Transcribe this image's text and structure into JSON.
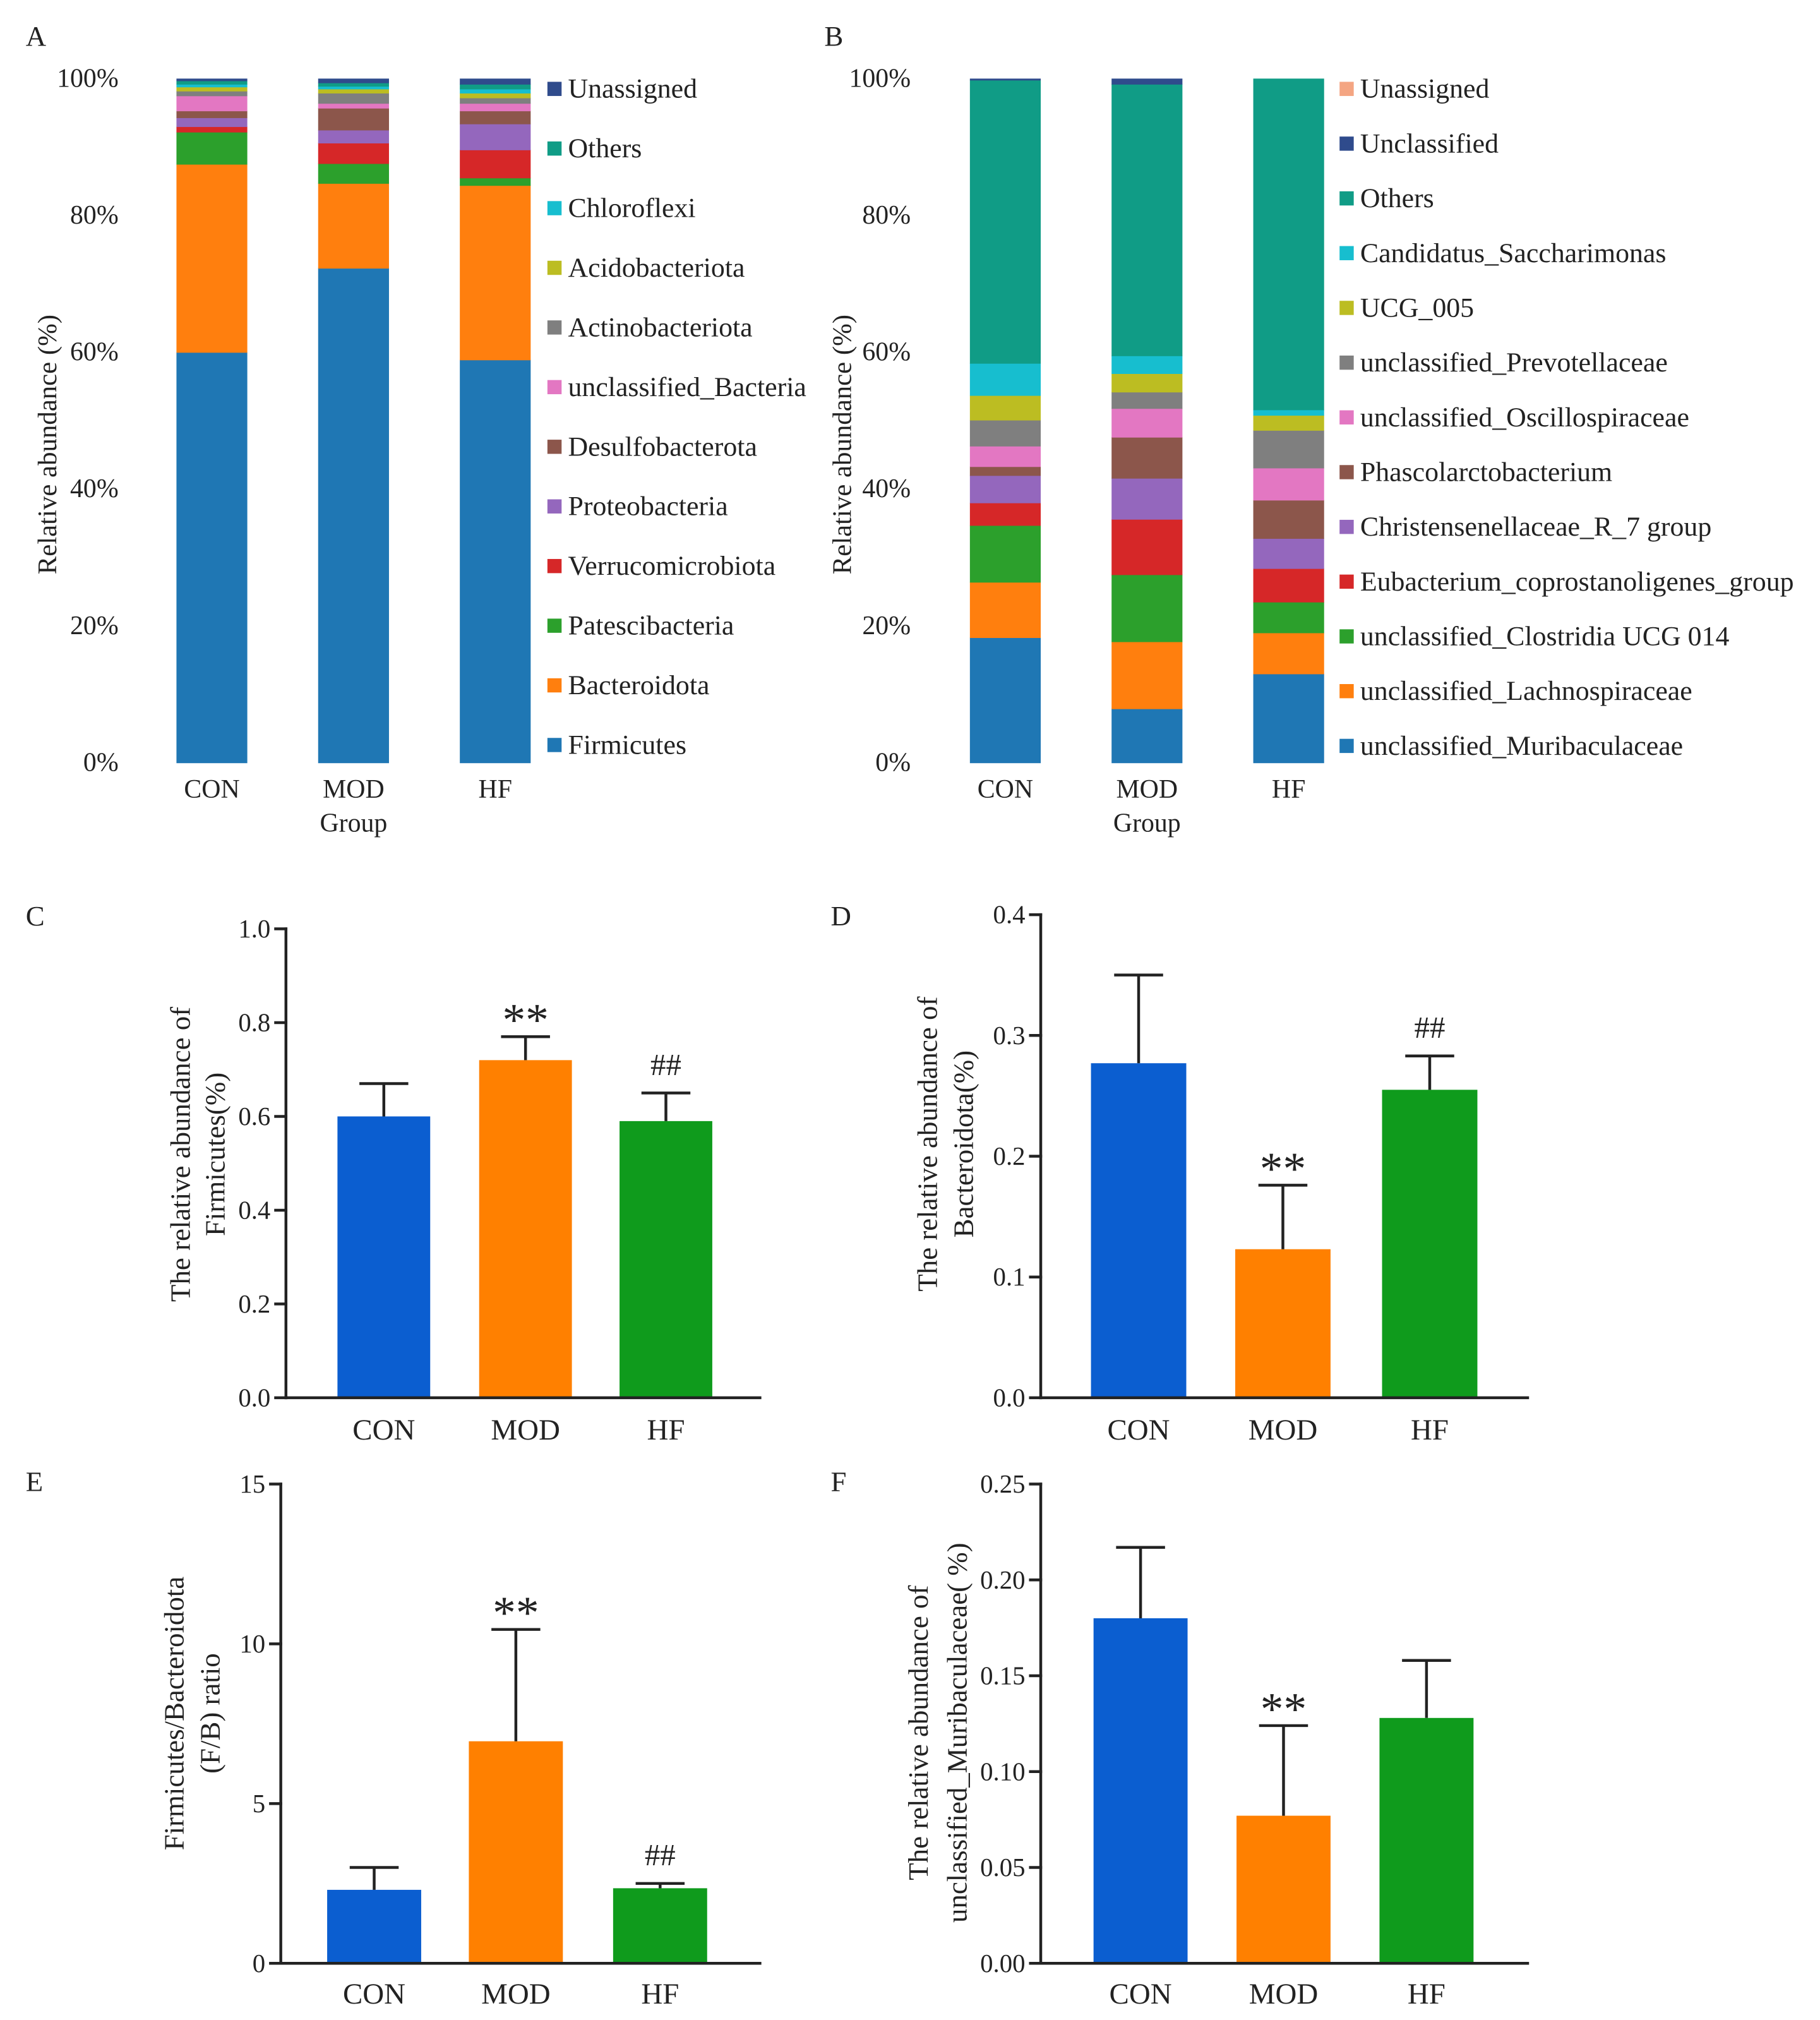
{
  "chart_data": [
    {
      "panel": "A",
      "type": "bar",
      "stacked": true,
      "xlabel": "Group",
      "ylabel": "Relative abundance (%)",
      "ylim": [
        0,
        100
      ],
      "yticks": [
        0,
        20,
        40,
        60,
        80,
        100
      ],
      "ytick_labels": [
        "0%",
        "20%",
        "40%",
        "60%",
        "80%",
        "100%"
      ],
      "categories": [
        "CON",
        "MOD",
        "HF"
      ],
      "legend": "right",
      "series": [
        {
          "name": "Firmicutes",
          "color": "#1f77b4",
          "values": [
            60.0,
            72.3,
            58.9
          ]
        },
        {
          "name": "Bacteroidota",
          "color": "#ff7f0e",
          "values": [
            27.5,
            12.4,
            25.5
          ]
        },
        {
          "name": "Patescibacteria",
          "color": "#2ca02c",
          "values": [
            4.7,
            2.9,
            1.1
          ]
        },
        {
          "name": "Verrucomicrobiota",
          "color": "#d62728",
          "values": [
            0.8,
            3.0,
            4.1
          ]
        },
        {
          "name": "Proteobacteria",
          "color": "#9467bd",
          "values": [
            1.3,
            1.9,
            3.8
          ]
        },
        {
          "name": "Desulfobacterota",
          "color": "#8c564b",
          "values": [
            1.0,
            3.2,
            1.9
          ]
        },
        {
          "name": "unclassified_Bacteria",
          "color": "#e377c2",
          "values": [
            2.2,
            0.7,
            1.1
          ]
        },
        {
          "name": "Actinobacteriota",
          "color": "#7f7f7f",
          "values": [
            0.7,
            1.5,
            0.8
          ]
        },
        {
          "name": "Acidobacteriota",
          "color": "#bcbd22",
          "values": [
            0.6,
            0.6,
            0.7
          ]
        },
        {
          "name": "Chloroflexi",
          "color": "#17becf",
          "values": [
            0.4,
            0.4,
            0.6
          ]
        },
        {
          "name": "Others",
          "color": "#109c86",
          "values": [
            0.5,
            0.5,
            0.7
          ]
        },
        {
          "name": "Unassigned",
          "color": "#2f4b8c",
          "values": [
            0.3,
            0.6,
            0.8
          ]
        }
      ]
    },
    {
      "panel": "B",
      "type": "bar",
      "stacked": true,
      "xlabel": "Group",
      "ylabel": "Relative abundance (%)",
      "ylim": [
        0,
        100
      ],
      "yticks": [
        0,
        20,
        40,
        60,
        80,
        100
      ],
      "ytick_labels": [
        "0%",
        "20%",
        "40%",
        "60%",
        "80%",
        "100%"
      ],
      "categories": [
        "CON",
        "MOD",
        "HF"
      ],
      "legend": "right",
      "series": [
        {
          "name": "unclassified_Muribaculaceae",
          "color": "#1f77b4",
          "values": [
            18.3,
            7.9,
            13.0
          ]
        },
        {
          "name": "unclassified_Lachnospiraceae",
          "color": "#ff7f0e",
          "values": [
            8.1,
            9.8,
            6.0
          ]
        },
        {
          "name": "unclassified_Clostridia UCG 014",
          "color": "#2ca02c",
          "values": [
            8.3,
            9.8,
            4.5
          ]
        },
        {
          "name": "Eubacterium_coprostanoligenes_group",
          "color": "#d62728",
          "values": [
            3.3,
            8.1,
            4.9
          ]
        },
        {
          "name": "Christensenellaceae_R_7 group",
          "color": "#9467bd",
          "values": [
            4.0,
            6.0,
            4.4
          ]
        },
        {
          "name": "Phascolarctobacterium",
          "color": "#8c564b",
          "values": [
            1.3,
            6.0,
            5.6
          ]
        },
        {
          "name": "unclassified_Oscillospiraceae",
          "color": "#e377c2",
          "values": [
            3.0,
            4.2,
            4.7
          ]
        },
        {
          "name": "unclassified_Prevotellaceae",
          "color": "#7f7f7f",
          "values": [
            3.8,
            2.4,
            5.5
          ]
        },
        {
          "name": "UCG_005",
          "color": "#bcbd22",
          "values": [
            3.6,
            2.7,
            2.2
          ]
        },
        {
          "name": "Candidatus_Saccharimonas",
          "color": "#17becf",
          "values": [
            4.7,
            2.6,
            0.8
          ]
        },
        {
          "name": "Others",
          "color": "#109c86",
          "values": [
            41.4,
            39.7,
            48.4
          ]
        },
        {
          "name": "Unclassified",
          "color": "#2f4b8c",
          "values": [
            0.2,
            0.8,
            0.0
          ]
        },
        {
          "name": "Unassigned",
          "color": "#f4a582",
          "values": [
            0.0,
            0.0,
            0.0
          ]
        }
      ]
    },
    {
      "panel": "C",
      "type": "bar",
      "ylabel": [
        "The relative abundance of",
        "Firmicutes(%)"
      ],
      "ylim": [
        0,
        1.0
      ],
      "yticks": [
        0,
        0.2,
        0.4,
        0.6,
        0.8,
        1.0
      ],
      "ytick_labels": [
        "0.0",
        "0.2",
        "0.4",
        "0.6",
        "0.8",
        "1.0"
      ],
      "categories": [
        "CON",
        "MOD",
        "HF"
      ],
      "values": [
        0.6,
        0.72,
        0.59
      ],
      "errors": [
        0.07,
        0.05,
        0.06
      ],
      "colors": [
        "#0b5ed0",
        "#ff8000",
        "#0f9b1c"
      ],
      "annotations": [
        null,
        "**",
        "##"
      ]
    },
    {
      "panel": "D",
      "type": "bar",
      "ylabel": [
        "The relative abundance of",
        "Bacteroidota(%)"
      ],
      "ylim": [
        0,
        0.4
      ],
      "yticks": [
        0,
        0.1,
        0.2,
        0.3,
        0.4
      ],
      "ytick_labels": [
        "0.0",
        "0.1",
        "0.2",
        "0.3",
        "0.4"
      ],
      "categories": [
        "CON",
        "MOD",
        "HF"
      ],
      "values": [
        0.277,
        0.123,
        0.255
      ],
      "errors": [
        0.073,
        0.053,
        0.028
      ],
      "colors": [
        "#0b5ed0",
        "#ff8000",
        "#0f9b1c"
      ],
      "annotations": [
        null,
        "**",
        "##"
      ]
    },
    {
      "panel": "E",
      "type": "bar",
      "ylabel": [
        "Firmicutes/Bacteroidota",
        "(F/B) ratio"
      ],
      "ylim": [
        0,
        15
      ],
      "yticks": [
        0,
        5,
        10,
        15
      ],
      "ytick_labels": [
        "0",
        "5",
        "10",
        "15"
      ],
      "categories": [
        "CON",
        "MOD",
        "HF"
      ],
      "values": [
        2.3,
        6.95,
        2.35
      ],
      "errors": [
        0.7,
        3.5,
        0.15
      ],
      "colors": [
        "#0b5ed0",
        "#ff8000",
        "#0f9b1c"
      ],
      "annotations": [
        null,
        "**",
        "##"
      ]
    },
    {
      "panel": "F",
      "type": "bar",
      "ylabel": [
        "The relative abundance of",
        "unclassified_Muribaculaceae( %)"
      ],
      "ylim": [
        0,
        0.25
      ],
      "yticks": [
        0,
        0.05,
        0.1,
        0.15,
        0.2,
        0.25
      ],
      "ytick_labels": [
        "0.00",
        "0.05",
        "0.10",
        "0.15",
        "0.20",
        "0.25"
      ],
      "categories": [
        "CON",
        "MOD",
        "HF"
      ],
      "values": [
        0.18,
        0.077,
        0.128
      ],
      "errors": [
        0.037,
        0.047,
        0.03
      ],
      "colors": [
        "#0b5ed0",
        "#ff8000",
        "#0f9b1c"
      ],
      "annotations": [
        null,
        "**",
        null
      ]
    }
  ]
}
